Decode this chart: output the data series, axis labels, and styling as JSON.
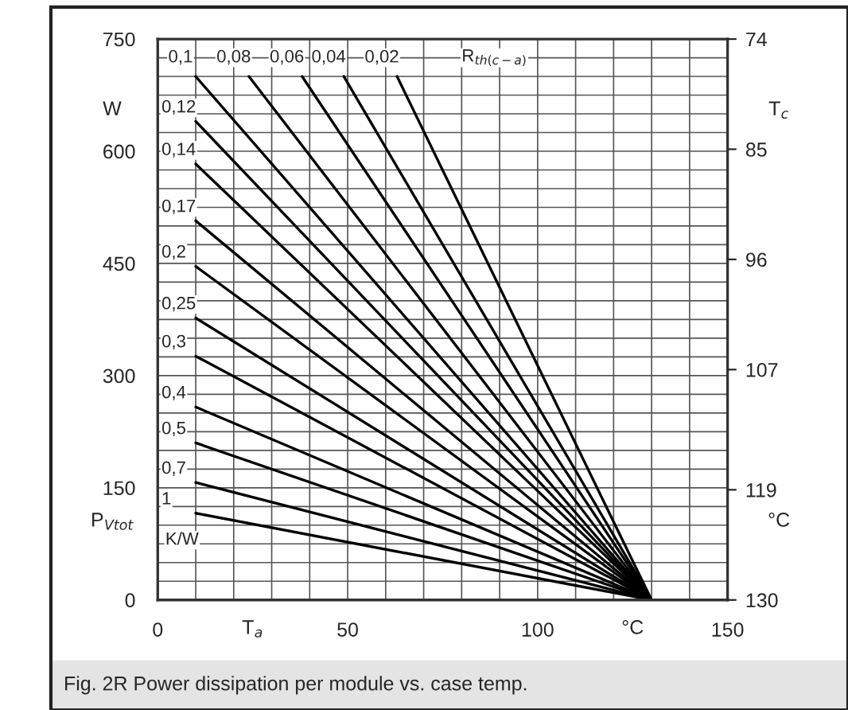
{
  "chart_data": {
    "type": "line",
    "title": null,
    "xlabel": "T$_{a}$",
    "ylabel": "P$_{Vtot}$",
    "y2label": "T$_{c}$",
    "xlim": [
      0,
      150
    ],
    "xticks": [
      0,
      {
        "value": 10,
        "label": null
      },
      {
        "value": 20,
        "label": null
      },
      {
        "value": 30,
        "label": null
      },
      {
        "value": 40,
        "label": null
      },
      50,
      {
        "value": 60,
        "label": null
      },
      {
        "value": 70,
        "label": null
      },
      {
        "value": 80,
        "label": null
      },
      {
        "value": 90,
        "label": null
      },
      100,
      {
        "value": 110,
        "label": null
      },
      {
        "value": 120,
        "label": null
      },
      {
        "value": 130,
        "label": null
      },
      {
        "value": 140,
        "label": null
      },
      150
    ],
    "ylim": [
      0,
      750
    ],
    "yticks": [
      0,
      {
        "value": 25,
        "label": null
      },
      {
        "value": 50,
        "label": null
      },
      {
        "value": 75,
        "label": null
      },
      {
        "value": 100,
        "label": null
      },
      {
        "value": 125,
        "label": null
      },
      150,
      {
        "value": 175,
        "label": null
      },
      {
        "value": 200,
        "label": null
      },
      {
        "value": 225,
        "label": null
      },
      {
        "value": 250,
        "label": null
      },
      {
        "value": 275,
        "label": null
      },
      300,
      {
        "value": 325,
        "label": null
      },
      {
        "value": 350,
        "label": null
      },
      {
        "value": 375,
        "label": null
      },
      {
        "value": 400,
        "label": null
      },
      {
        "value": 425,
        "label": null
      },
      450,
      {
        "value": 475,
        "label": null
      },
      {
        "value": 500,
        "label": null
      },
      {
        "value": 525,
        "label": null
      },
      {
        "value": 550,
        "label": null
      },
      {
        "value": 575,
        "label": null
      },
      600,
      {
        "value": 625,
        "label": null
      },
      {
        "value": 650,
        "label": null
      },
      {
        "value": 675,
        "label": null
      },
      {
        "value": 700,
        "label": null
      },
      {
        "value": 725,
        "label": null
      },
      750
    ],
    "y2lim": [
      130,
      74
    ],
    "y2ticks": [
      74,
      85,
      96,
      107,
      119,
      130
    ],
    "grid": true,
    "legend": false,
    "marker": "none",
    "line_style": "solid",
    "series": [
      {
        "name": "0,1",
        "color": "#000000",
        "x": [
          10,
          130
        ],
        "values": [
          700,
          0
        ]
      },
      {
        "name": "0,08",
        "color": "#000000",
        "x": [
          24,
          130
        ],
        "values": [
          700,
          0
        ]
      },
      {
        "name": "0,06",
        "color": "#000000",
        "x": [
          38,
          130
        ],
        "values": [
          700,
          0
        ]
      },
      {
        "name": "0,04",
        "color": "#000000",
        "x": [
          49,
          130
        ],
        "values": [
          700,
          0
        ]
      },
      {
        "name": "0,02",
        "color": "#000000",
        "x": [
          63,
          130
        ],
        "values": [
          700,
          0
        ]
      },
      {
        "name": "0,12",
        "color": "#000000",
        "x": [
          10,
          130
        ],
        "values": [
          640,
          0
        ]
      },
      {
        "name": "0,14",
        "color": "#000000",
        "x": [
          10,
          130
        ],
        "values": [
          583,
          0
        ]
      },
      {
        "name": "0,17",
        "color": "#000000",
        "x": [
          10,
          130
        ],
        "values": [
          507,
          0
        ]
      },
      {
        "name": "0,2",
        "color": "#000000",
        "x": [
          10,
          130
        ],
        "values": [
          446,
          0
        ]
      },
      {
        "name": "0,25",
        "color": "#000000",
        "x": [
          10,
          130
        ],
        "values": [
          377,
          0
        ]
      },
      {
        "name": "0,3",
        "color": "#000000",
        "x": [
          10,
          130
        ],
        "values": [
          326,
          0
        ]
      },
      {
        "name": "0,4",
        "color": "#000000",
        "x": [
          10,
          130
        ],
        "values": [
          258,
          0
        ]
      },
      {
        "name": "0,5",
        "color": "#000000",
        "x": [
          10,
          130
        ],
        "values": [
          210,
          0
        ]
      },
      {
        "name": "0,7",
        "color": "#000000",
        "x": [
          10,
          130
        ],
        "values": [
          157,
          0
        ]
      },
      {
        "name": "1",
        "color": "#000000",
        "x": [
          10,
          130
        ],
        "values": [
          116,
          0
        ]
      }
    ],
    "annotations": [
      "W",
      "°C",
      "°C",
      "K/W",
      "R$_{th(c−a)}$",
      "Fig. 2R Power dissipation per module vs. case temp."
    ]
  }
}
